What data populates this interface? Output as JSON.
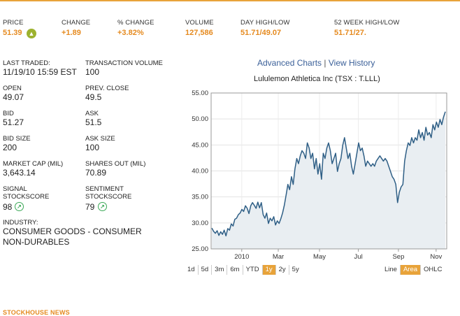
{
  "summary": {
    "headers": {
      "price": "PRICE",
      "change": "CHANGE",
      "pct_change": "% CHANGE",
      "volume": "VOLUME",
      "day_range": "DAY HIGH/LOW",
      "week52_range": "52 WEEK HIGH/LOW"
    },
    "values": {
      "price": "51.39",
      "change": "+1.89",
      "pct_change": "+3.82%",
      "volume": "127,586",
      "day_range": "51.71/49.07",
      "week52_range": "51.71/27."
    }
  },
  "stats": {
    "last_traded_label": "LAST TRADED:",
    "last_traded_value": "11/19/10 15:59 EST",
    "transaction_volume_label": "TRANSACTION VOLUME",
    "transaction_volume_value": "100",
    "open_label": "OPEN",
    "open_value": "49.07",
    "prev_close_label": "PREV. CLOSE",
    "prev_close_value": "49.5",
    "bid_label": "BID",
    "bid_value": "51.27",
    "ask_label": "ASK",
    "ask_value": "51.5",
    "bid_size_label": "BID SIZE",
    "bid_size_value": "200",
    "ask_size_label": "ASK SIZE",
    "ask_size_value": "100",
    "market_cap_label": "MARKET CAP (MIL)",
    "market_cap_value": "3,643.14",
    "shares_out_label": "SHARES OUT (MIL)",
    "shares_out_value": "70.89",
    "signal_label_1": "SIGNAL",
    "signal_label_2": "STOCKSCORE",
    "signal_value": "98",
    "sentiment_label_1": "SENTIMENT",
    "sentiment_label_2": "STOCKSCORE",
    "sentiment_value": "79",
    "industry_label": "INDUSTRY:",
    "industry_line1": "CONSUMER GOODS - CONSUMER",
    "industry_line2": "NON-DURABLES"
  },
  "chart_links": {
    "advanced": "Advanced Charts",
    "separator": "|",
    "history": "View History"
  },
  "range_buttons": [
    "1d",
    "5d",
    "3m",
    "6m",
    "YTD",
    "1y",
    "2y",
    "5y"
  ],
  "active_range": "1y",
  "type_buttons": [
    "Line",
    "Area",
    "OHLC"
  ],
  "active_type": "Area",
  "news_heading": "STOCKHOUSE NEWS",
  "colors": {
    "accent": "#e8a33a",
    "value_orange": "#e58a1f",
    "line": "#2f5f86",
    "area": "#e9eef2",
    "link": "#3a5f98",
    "signal_green": "#3aa856"
  },
  "icons": {
    "price_up": "up-arrow-circle-icon",
    "signal": "up-right-arrow-circle-icon"
  },
  "chart_data": {
    "type": "area",
    "title": "Lululemon Athletica Inc (TSX : T.LLL)",
    "ylim": [
      25,
      55
    ],
    "yticks": [
      25,
      30,
      35,
      40,
      45,
      50,
      55
    ],
    "ytick_labels": [
      "25.00",
      "30.00",
      "35.00",
      "40.00",
      "45.00",
      "50.00",
      "55.00"
    ],
    "xtick_labels": [
      "2010",
      "Mar",
      "May",
      "Jul",
      "Sep",
      "Nov"
    ],
    "xtick_positions": [
      0.13,
      0.285,
      0.46,
      0.625,
      0.795,
      0.955
    ],
    "xlabel": "",
    "ylabel": "",
    "series": [
      {
        "name": "T.LLL",
        "values": [
          29.0,
          28.4,
          28.0,
          28.5,
          27.6,
          28.3,
          27.8,
          28.6,
          27.5,
          28.9,
          28.6,
          29.8,
          29.4,
          30.7,
          30.9,
          31.6,
          31.9,
          32.6,
          32.2,
          33.3,
          32.8,
          31.8,
          33.3,
          33.9,
          33.4,
          32.8,
          34.0,
          32.9,
          33.9,
          31.6,
          30.9,
          31.9,
          29.9,
          30.9,
          30.4,
          31.2,
          29.6,
          30.4,
          29.9,
          30.8,
          31.9,
          33.4,
          35.4,
          37.4,
          36.4,
          38.9,
          37.4,
          40.4,
          42.4,
          41.4,
          42.9,
          43.9,
          43.4,
          42.4,
          45.4,
          44.4,
          42.4,
          43.4,
          40.4,
          42.4,
          39.4,
          41.4,
          38.4,
          43.4,
          42.4,
          44.4,
          45.4,
          43.9,
          41.4,
          42.4,
          43.4,
          39.9,
          41.4,
          42.4,
          44.9,
          46.4,
          44.4,
          42.4,
          43.4,
          40.9,
          39.4,
          41.4,
          43.4,
          45.4,
          43.9,
          44.4,
          42.9,
          40.9,
          41.9,
          41.4,
          40.9,
          41.4,
          40.9,
          41.9,
          42.4,
          42.9,
          42.4,
          41.9,
          42.4,
          41.9,
          40.9,
          39.9,
          38.9,
          38.4,
          37.4,
          33.9,
          35.9,
          36.9,
          37.4,
          41.9,
          43.9,
          45.4,
          44.9,
          46.4,
          45.4,
          46.4,
          45.9,
          47.9,
          46.4,
          47.4,
          45.9,
          48.4,
          46.9,
          47.4,
          46.4,
          48.9,
          47.9,
          49.4,
          48.4,
          49.9,
          48.9,
          50.4,
          51.4
        ]
      }
    ]
  }
}
